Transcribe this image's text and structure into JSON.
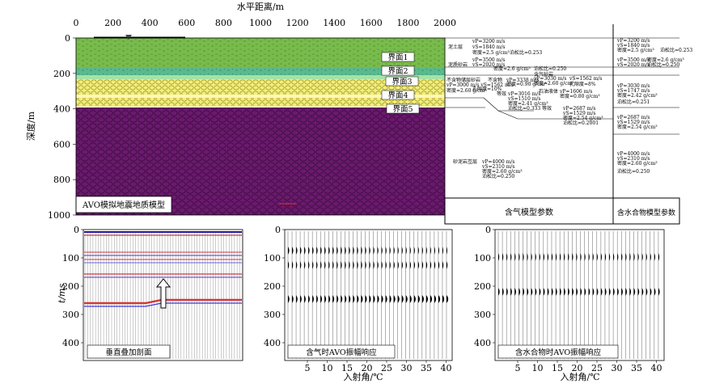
{
  "model": {
    "x_axis_title": "水平距离/m",
    "y_axis_title": "深度/m",
    "x_ticks": [
      "0",
      "200",
      "400",
      "600",
      "800",
      "1000",
      "1200",
      "1400",
      "1600",
      "1800",
      "2000"
    ],
    "y_ticks": [
      "0",
      "200",
      "400",
      "600",
      "800",
      "1000"
    ],
    "caption": "AVO模拟地震地质模型",
    "interfaces": [
      "界面1",
      "界面2",
      "界面3",
      "界面4",
      "界面5"
    ],
    "layers": [
      {
        "name": "泥土层",
        "color": "#76b84a"
      },
      {
        "name": "泥质砂岩",
        "color": "#5cb88e"
      },
      {
        "name": "含气砂岩",
        "color": "#f2ec74"
      },
      {
        "name": "砂泥岩互层",
        "color": "#6b1a6e"
      }
    ]
  },
  "gas_table": {
    "footer": "含气模型参数",
    "r1": [
      "泥土层",
      "vP=3200 m/s",
      "vS=1840 m/s",
      "密度=2.5 g/cm³",
      "泊松比=0.253"
    ],
    "r2": [
      "泥质砂岩",
      "vP=3500 m/s",
      "vS=2020 m/s",
      "密度=2.6 g/cm³",
      "泊松比=0.250"
    ],
    "r3a": [
      "不含物储层砂岩",
      "vP=3000 m/s vS=1562 m/s",
      "密度=2.60 g/cm³",
      "孔隙度=10%"
    ],
    "r3b": [
      "含气砂岩",
      "vP=3030 m/s",
      "vS=1562 m/s",
      "密度=2.60 g/cm³",
      "孔隙度=8%"
    ],
    "r3c": [
      "不含物",
      "vP=3338 m/s",
      "密度=0.90 g/cm³"
    ],
    "r3d": [
      "等效",
      "vP=3016 m/s",
      "vS=1510 m/s",
      "密度=2.41 g/cm³",
      "泊松比=0.333"
    ],
    "r3e": [
      "石油液体",
      "vP=1606 m/s",
      "密度=0.80 g/cm³"
    ],
    "r3f": [
      "等效",
      "vP=2687 m/s",
      "vS=1529 m/s",
      "密度=2.54 g/cm³",
      "泊松比=0.2001"
    ],
    "r4": [
      "砂泥岩互层",
      "vP=4000 m/s",
      "vS=2310 m/s",
      "密度=2.60 g/cm³",
      "泊松比=0.250"
    ]
  },
  "water_table": {
    "footer": "含水合物模型参数",
    "r1": [
      "vP=3200 m/s",
      "vS=1840 m/s",
      "密度=2.5 g/cm³",
      "泊松比=0.253"
    ],
    "r2": [
      "vP=3500 m/s",
      "密度=2.6 g/cm³",
      "vS=2020 m/s",
      "泊松比=0.250"
    ],
    "r3": [
      "vP=3030 m/s",
      "vS=1747 m/s",
      "密度=2.42 g/cm³",
      "泊松比=0.251"
    ],
    "r4": [
      "vP=2687 m/s",
      "vS=1529 m/s",
      "密度=2.54 g/cm³"
    ],
    "r5": [
      "vP=4000 m/s",
      "vS=2310 m/s",
      "密度=2.60 g/cm³",
      "泊松比=0.250"
    ]
  },
  "panels": [
    {
      "caption": "垂直叠加剖面",
      "y_title": "t/ms",
      "y_ticks": [
        "0",
        "100",
        "200",
        "300",
        "400"
      ]
    },
    {
      "caption": "含气时AVO振幅响应",
      "x_title": "入射角/℃",
      "x_ticks": [
        "5",
        "10",
        "15",
        "20",
        "25",
        "30",
        "35",
        "40"
      ],
      "y_ticks": [
        "0",
        "100",
        "200",
        "300",
        "400"
      ]
    },
    {
      "caption": "含水合物时AVO振幅响应",
      "x_title": "入射角/℃",
      "x_ticks": [
        "5",
        "10",
        "15",
        "20",
        "25",
        "30",
        "35",
        "40"
      ],
      "y_ticks": [
        "0",
        "100",
        "200",
        "300",
        "400"
      ]
    }
  ]
}
